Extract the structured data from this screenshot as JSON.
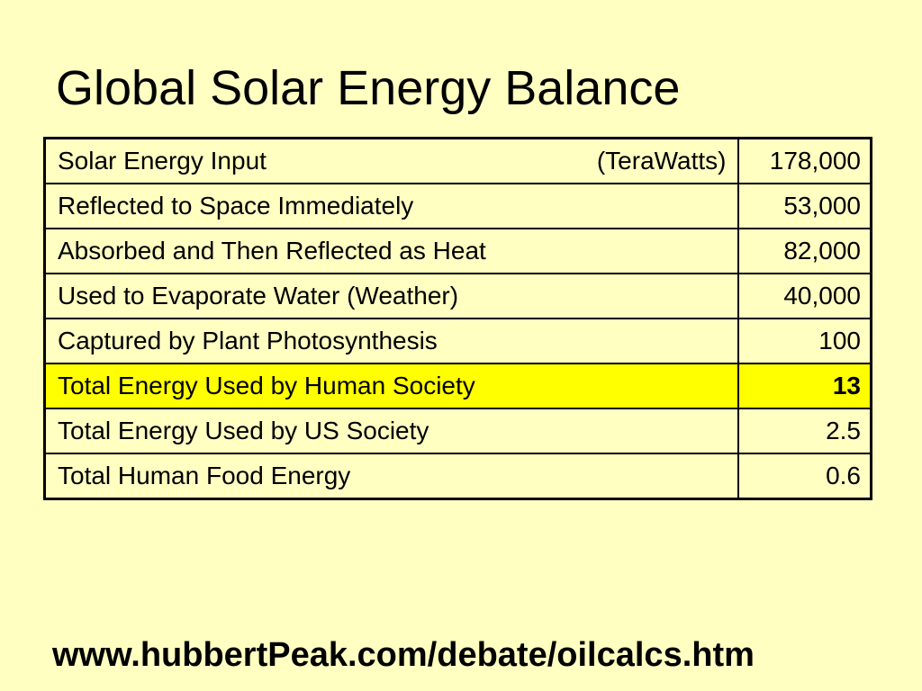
{
  "slide": {
    "title": "Global Solar Energy Balance",
    "footer_url": "www.hubbertPeak.com/debate/oilcalcs.htm"
  },
  "table": {
    "unit_label": "(TeraWatts)",
    "highlight_color": "#FFFF00",
    "background_color": "#FFFFC2",
    "rows": [
      {
        "label": "Solar Energy Input",
        "value": "178,000"
      },
      {
        "label": "Reflected to Space Immediately",
        "value": "53,000"
      },
      {
        "label": "Absorbed and Then Reflected as Heat",
        "value": "82,000"
      },
      {
        "label": "Used to Evaporate Water (Weather)",
        "value": "40,000"
      },
      {
        "label": "Captured by Plant Photosynthesis",
        "value": "100"
      },
      {
        "label": "Total Energy Used by Human Society",
        "value": "13"
      },
      {
        "label": "Total Energy Used by US Society",
        "value": "2.5"
      },
      {
        "label": "Total Human Food Energy",
        "value": "0.6"
      }
    ]
  }
}
